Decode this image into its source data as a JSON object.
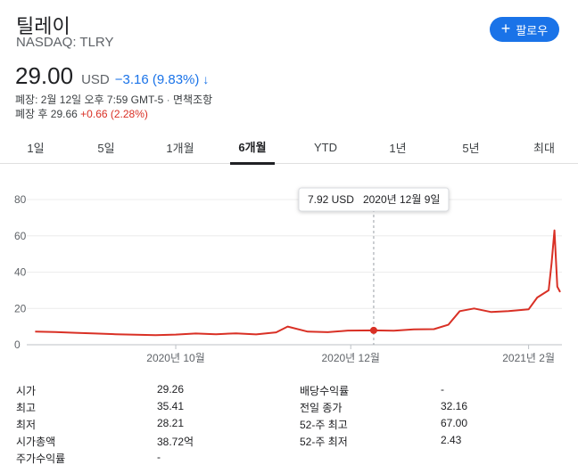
{
  "header": {
    "company_name": "틸레이",
    "exchange_ticker": "NASDAQ: TLRY",
    "follow_plus": "+",
    "follow_label": "팔로우"
  },
  "quote": {
    "price": "29.00",
    "currency": "USD",
    "change": "−3.16 (9.83%)",
    "direction_arrow": "↓",
    "close_info": "폐장: 2월 12일 오후 7:59 GMT-5",
    "separator": "·",
    "disclaimer": "면책조항",
    "after_hours_label": "폐장 후 29.66",
    "after_hours_change": "+0.66 (2.28%)"
  },
  "tabs": [
    {
      "label": "1일",
      "active": false
    },
    {
      "label": "5일",
      "active": false
    },
    {
      "label": "1개월",
      "active": false
    },
    {
      "label": "6개월",
      "active": true
    },
    {
      "label": "YTD",
      "active": false
    },
    {
      "label": "1년",
      "active": false
    },
    {
      "label": "5년",
      "active": false
    },
    {
      "label": "최대",
      "active": false
    }
  ],
  "chart_data": {
    "type": "line",
    "y_ticks": [
      "80",
      "60",
      "40",
      "20",
      "0"
    ],
    "ylim": [
      0,
      80
    ],
    "x_tick_labels": [
      "2020년 10월",
      "2020년 12월",
      "2021년 2월"
    ],
    "series": [
      {
        "color": "#d93025",
        "x": [
          "2020-08-13",
          "2020-08-20",
          "2020-08-27",
          "2020-09-03",
          "2020-09-10",
          "2020-09-17",
          "2020-09-24",
          "2020-10-01",
          "2020-10-08",
          "2020-10-15",
          "2020-10-22",
          "2020-10-29",
          "2020-11-05",
          "2020-11-09",
          "2020-11-16",
          "2020-11-23",
          "2020-11-30",
          "2020-12-09",
          "2020-12-16",
          "2020-12-23",
          "2020-12-30",
          "2021-01-04",
          "2021-01-08",
          "2021-01-13",
          "2021-01-19",
          "2021-01-25",
          "2021-02-01",
          "2021-02-04",
          "2021-02-08",
          "2021-02-09",
          "2021-02-10",
          "2021-02-11",
          "2021-02-12"
        ],
        "values": [
          7.2,
          7.0,
          6.6,
          6.2,
          5.8,
          5.5,
          5.3,
          5.6,
          6.2,
          5.8,
          6.3,
          5.7,
          6.8,
          10.0,
          7.2,
          6.9,
          7.8,
          7.92,
          7.7,
          8.5,
          8.6,
          11.0,
          18.5,
          20.0,
          18.0,
          18.5,
          19.5,
          26.0,
          30.0,
          45.0,
          63.0,
          32.0,
          29.0
        ]
      }
    ],
    "hover": {
      "x": "2020-12-09",
      "value": 7.92,
      "tooltip_price": "7.92 USD",
      "tooltip_date": "2020년 12월 9일"
    },
    "grid": true
  },
  "stats": {
    "left": [
      {
        "label": "시가",
        "value": "29.26"
      },
      {
        "label": "최고",
        "value": "35.41"
      },
      {
        "label": "최저",
        "value": "28.21"
      },
      {
        "label": "시가총액",
        "value": "38.72억"
      },
      {
        "label": "주가수익률",
        "value": "-"
      }
    ],
    "right": [
      {
        "label": "배당수익률",
        "value": "-"
      },
      {
        "label": "전일 종가",
        "value": "32.16"
      },
      {
        "label": "52-주 최고",
        "value": "67.00"
      },
      {
        "label": "52-주 최저",
        "value": "2.43"
      }
    ]
  }
}
